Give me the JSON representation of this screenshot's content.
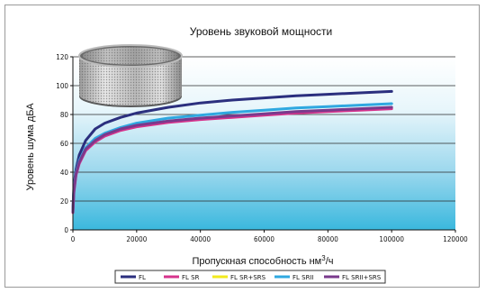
{
  "chart_data": {
    "type": "line",
    "title": "Уровень звуковой мощности",
    "ylabel": "Уровень шума дБА",
    "xlabel_main": "Пропускная способность нм",
    "xlabel_sup": "3",
    "xlabel_tail": "/ч",
    "xlim": [
      0,
      120000
    ],
    "ylim": [
      0,
      120
    ],
    "x_ticks": [
      "0",
      "20000",
      "40000",
      "60000",
      "80000",
      "100000",
      "120000"
    ],
    "y_ticks": [
      "0",
      "20",
      "40",
      "60",
      "80",
      "100",
      "120"
    ],
    "grid": true,
    "legend_position": "bottom",
    "series": [
      {
        "name": "FL",
        "color": "#2b2f7e",
        "x": [
          0,
          300,
          1000,
          2000,
          4000,
          7000,
          10000,
          15000,
          20000,
          30000,
          40000,
          50000,
          60000,
          70000,
          80000,
          90000,
          100000
        ],
        "y": [
          14,
          30,
          42,
          52,
          62,
          70,
          74,
          78,
          81,
          85,
          88,
          90,
          91.5,
          93,
          94,
          95,
          96
        ]
      },
      {
        "name": "FL SR",
        "color": "#d6338c",
        "x": [
          0,
          300,
          1000,
          2000,
          4000,
          7000,
          10000,
          15000,
          20000,
          30000,
          40000,
          50000,
          60000,
          70000,
          80000,
          90000,
          100000
        ],
        "y": [
          12,
          26,
          38,
          46,
          55,
          61,
          65,
          69,
          71.5,
          74.5,
          76.5,
          78,
          79.5,
          81,
          82,
          83,
          84
        ]
      },
      {
        "name": "FL SR+SRS",
        "color": "#f2ea1c",
        "x": [],
        "y": []
      },
      {
        "name": "FL SRII",
        "color": "#2fa8e0",
        "x": [
          0,
          300,
          1000,
          2000,
          4000,
          7000,
          10000,
          15000,
          20000,
          30000,
          40000,
          50000,
          60000,
          70000,
          80000,
          90000,
          100000
        ],
        "y": [
          13,
          28,
          40,
          48,
          57,
          63.5,
          67,
          71,
          74,
          77.5,
          79.5,
          81.5,
          83,
          84.5,
          85.5,
          86.5,
          87.5
        ]
      },
      {
        "name": "FL SRII+SRS",
        "color": "#7a3a8c",
        "x": [
          0,
          300,
          1000,
          2000,
          4000,
          7000,
          10000,
          15000,
          20000,
          30000,
          40000,
          50000,
          60000,
          70000,
          80000,
          90000,
          100000
        ],
        "y": [
          12.5,
          27,
          39,
          47,
          56,
          62,
          66,
          70,
          72.5,
          75.5,
          77.5,
          79,
          80.5,
          82,
          83,
          84,
          85
        ]
      }
    ]
  }
}
